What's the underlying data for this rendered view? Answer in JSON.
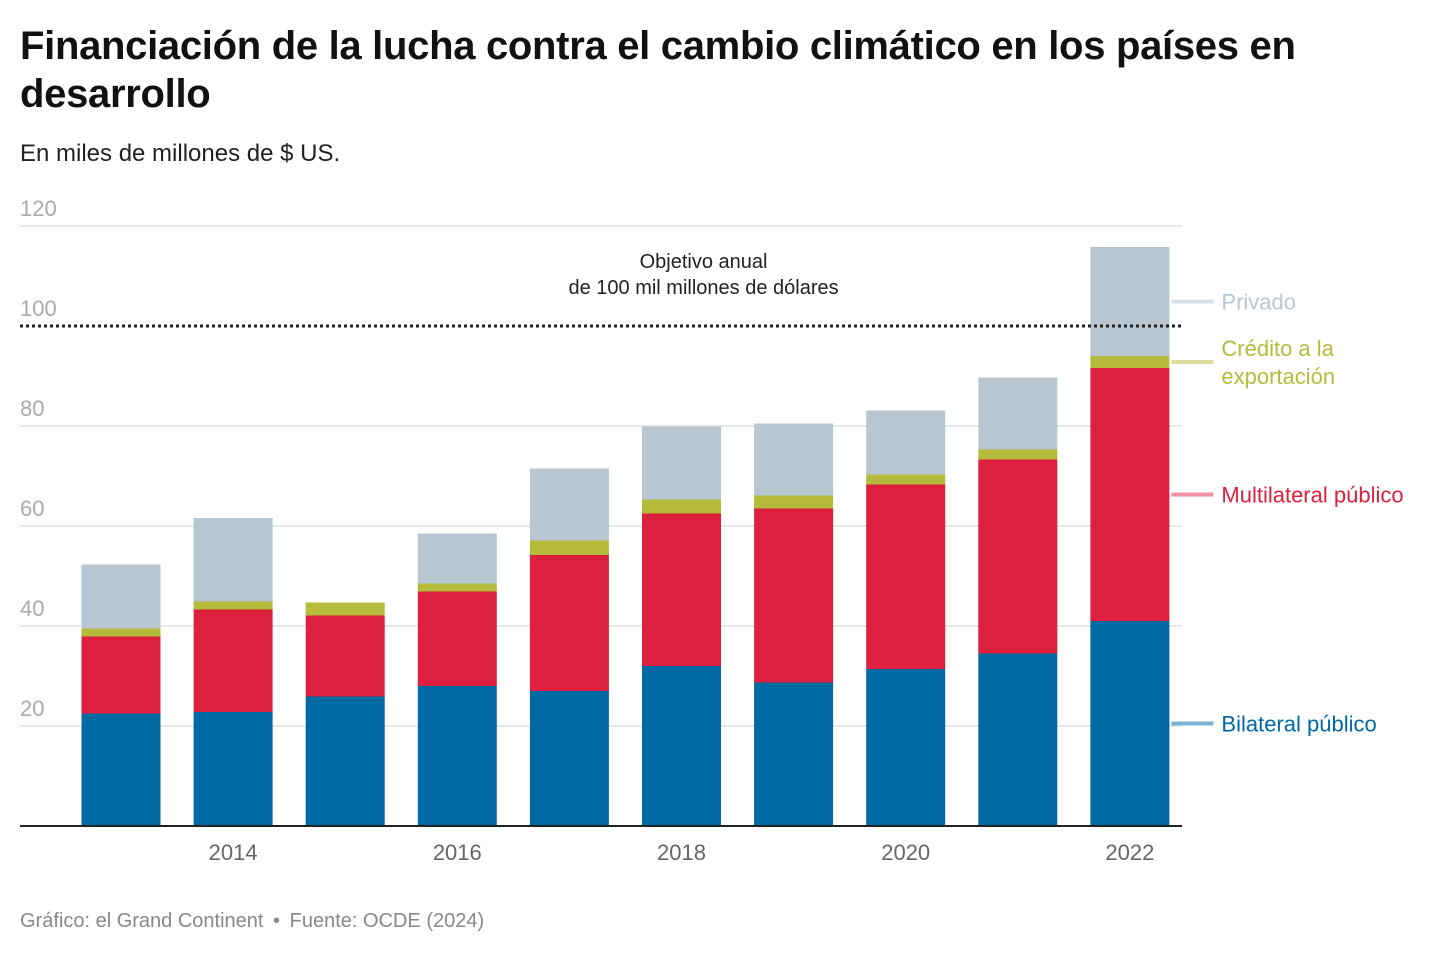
{
  "title": "Financiación de la lucha contra el cambio climático en los países en desarrollo",
  "subtitle": "En miles de millones de $ US.",
  "footer": {
    "graphic": "Gráfico: el Grand Continent",
    "separator": "•",
    "source": "Fuente: OCDE (2024)"
  },
  "chart_data": {
    "type": "bar",
    "stacked": true,
    "categories": [
      "2013",
      "2014",
      "2015",
      "2016",
      "2017",
      "2018",
      "2019",
      "2020",
      "2021",
      "2022"
    ],
    "x_tick_labels": [
      "2014",
      "2016",
      "2018",
      "2020",
      "2022"
    ],
    "ylim": [
      0,
      120
    ],
    "y_ticks": [
      20,
      40,
      60,
      80,
      100,
      120
    ],
    "grid": true,
    "series": [
      {
        "name": "Bilateral público",
        "color": "#0069a3",
        "legend_line": "#79b4d3",
        "values": [
          22.5,
          22.8,
          25.9,
          28.0,
          27.0,
          32.0,
          28.7,
          31.4,
          34.5,
          41.0
        ]
      },
      {
        "name": "Multilateral público",
        "color": "#dc203e",
        "legend_line": "#f092a3",
        "values": [
          15.4,
          20.5,
          16.2,
          18.9,
          27.2,
          30.5,
          34.8,
          36.9,
          38.8,
          50.6
        ]
      },
      {
        "name": "Crédito a la exportación",
        "color": "#b5bb3b",
        "legend_line": "#dddda0",
        "values": [
          1.6,
          1.6,
          2.6,
          1.6,
          2.9,
          2.8,
          2.6,
          2.0,
          2.0,
          2.4
        ]
      },
      {
        "name": "Privado",
        "color": "#b8c6d1",
        "legend_line": "#d6e0e7",
        "values": [
          12.8,
          16.7,
          0,
          10.0,
          14.4,
          14.6,
          14.4,
          12.8,
          14.4,
          21.8
        ]
      }
    ],
    "legend": {
      "privado": "Privado",
      "credito_line1": "Crédito a la",
      "credito_line2": "exportación",
      "multilateral": "Multilateral público",
      "bilateral": "Bilateral público"
    },
    "target": {
      "value": 100,
      "label_line1": "Objetivo anual",
      "label_line2": "de 100 mil millones de dólares"
    }
  }
}
